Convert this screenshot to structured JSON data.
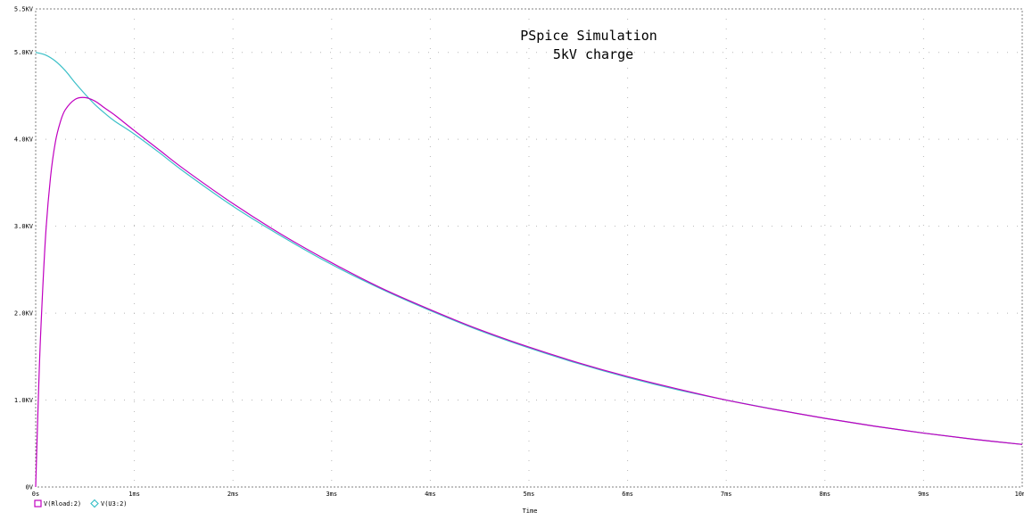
{
  "chart_data": {
    "type": "line",
    "annotation": [
      "PSpice Simulation",
      "5kV charge"
    ],
    "xlabel": "Time",
    "ylabel": "",
    "xlim": [
      0,
      10
    ],
    "ylim": [
      0,
      5.5
    ],
    "x_ticks": [
      0,
      1,
      2,
      3,
      4,
      5,
      6,
      7,
      8,
      9,
      10
    ],
    "x_tick_labels": [
      "0s",
      "1ms",
      "2ms",
      "3ms",
      "4ms",
      "5ms",
      "6ms",
      "7ms",
      "8ms",
      "9ms",
      "10ms"
    ],
    "y_ticks": [
      0,
      1,
      2,
      3,
      4,
      5,
      5.5
    ],
    "y_tick_labels": [
      "0V",
      "1.0KV",
      "2.0KV",
      "3.0KV",
      "4.0KV",
      "5.0KV",
      "5.5KV"
    ],
    "grid": true,
    "legend_position": "bottom-left",
    "series": [
      {
        "name": "V(Rload:2)",
        "marker": "square",
        "color": "#c000c0",
        "x": [
          0,
          0.025,
          0.05,
          0.1,
          0.15,
          0.2,
          0.25,
          0.3,
          0.4,
          0.5,
          0.6,
          0.7,
          0.8,
          1.0,
          1.25,
          1.5,
          2.0,
          2.5,
          3.0,
          3.5,
          4.0,
          4.5,
          5.0,
          5.5,
          6.0,
          6.5,
          7.0,
          7.5,
          8.0,
          8.5,
          9.0,
          9.5,
          10.0
        ],
        "y": [
          0,
          0.95,
          1.75,
          2.88,
          3.56,
          3.97,
          4.2,
          4.34,
          4.46,
          4.48,
          4.44,
          4.36,
          4.28,
          4.1,
          3.88,
          3.66,
          3.26,
          2.9,
          2.58,
          2.29,
          2.04,
          1.81,
          1.61,
          1.43,
          1.27,
          1.13,
          1.0,
          0.89,
          0.79,
          0.7,
          0.62,
          0.55,
          0.49
        ]
      },
      {
        "name": "V(U3:2)",
        "marker": "diamond",
        "color": "#3cc0c8",
        "x": [
          0,
          0.1,
          0.2,
          0.3,
          0.4,
          0.5,
          0.6,
          0.7,
          0.8,
          1.0,
          1.25,
          1.5,
          2.0,
          2.5,
          3.0,
          3.5,
          4.0,
          4.5,
          5.0,
          5.5,
          6.0,
          6.5,
          7.0,
          7.5,
          8.0,
          8.5,
          9.0,
          9.5,
          10.0
        ],
        "y": [
          5.0,
          4.97,
          4.9,
          4.79,
          4.65,
          4.52,
          4.4,
          4.3,
          4.21,
          4.06,
          3.85,
          3.63,
          3.23,
          2.88,
          2.56,
          2.28,
          2.03,
          1.8,
          1.6,
          1.42,
          1.26,
          1.12,
          1.0,
          0.89,
          0.79,
          0.7,
          0.62,
          0.55,
          0.49
        ]
      }
    ]
  }
}
